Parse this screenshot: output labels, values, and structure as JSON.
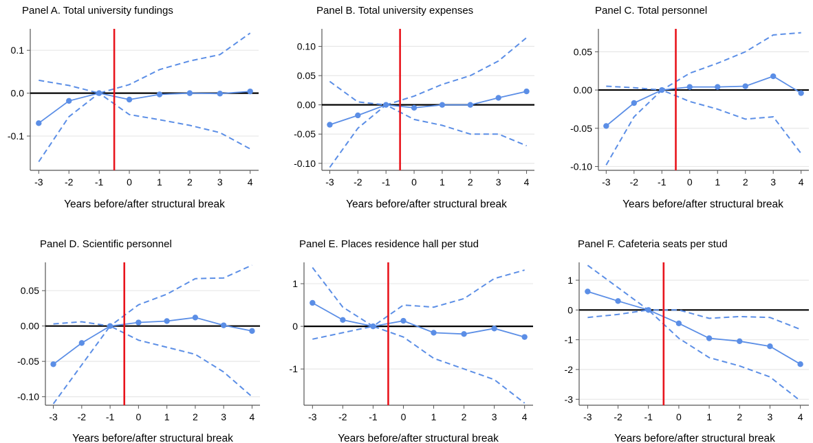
{
  "colors": {
    "series": "#5b8ee6",
    "break_line": "#e8141c",
    "zero_line": "#000000",
    "grid": "#e7e7e7",
    "axis": "#555555"
  },
  "chart_data": [
    {
      "type": "line",
      "title": "Panel A. Total university fundings",
      "xlabel": "Years before/after structural break",
      "ylabel": "",
      "x": [
        -3,
        -2,
        -1,
        0,
        1,
        2,
        3,
        4
      ],
      "xtick_labels": [
        "-3",
        "-2",
        "-1",
        "0",
        "1",
        "2",
        "3",
        "4"
      ],
      "ylim": [
        -0.18,
        0.15
      ],
      "yticks": [
        -0.1,
        0,
        0.1
      ],
      "ytick_labels": [
        "-0.1",
        "0.0",
        "0.1"
      ],
      "break_x": -0.5,
      "grid": true,
      "series": [
        {
          "role": "estimate",
          "style": "solid-markers",
          "values": [
            -0.07,
            -0.018,
            0.0,
            -0.015,
            -0.003,
            0.0,
            -0.001,
            0.004
          ]
        },
        {
          "role": "upper",
          "style": "dashed",
          "values": [
            0.03,
            0.018,
            0.0,
            0.02,
            0.055,
            0.075,
            0.09,
            0.14
          ]
        },
        {
          "role": "lower",
          "style": "dashed",
          "values": [
            -0.16,
            -0.055,
            0.0,
            -0.05,
            -0.062,
            -0.075,
            -0.092,
            -0.13
          ]
        }
      ]
    },
    {
      "type": "line",
      "title": "Panel B. Total university expenses",
      "xlabel": "Years before/after structural break",
      "ylabel": "",
      "x": [
        -3,
        -2,
        -1,
        0,
        1,
        2,
        3,
        4
      ],
      "xtick_labels": [
        "-3",
        "-2",
        "-1",
        "0",
        "1",
        "2",
        "3",
        "4"
      ],
      "ylim": [
        -0.112,
        0.13
      ],
      "yticks": [
        -0.1,
        -0.05,
        0,
        0.05,
        0.1
      ],
      "ytick_labels": [
        "-0.10",
        "-0.05",
        "0.00",
        "0.05",
        "0.10"
      ],
      "break_x": -0.5,
      "grid": true,
      "series": [
        {
          "role": "estimate",
          "style": "solid-markers",
          "values": [
            -0.034,
            -0.018,
            0.0,
            -0.005,
            0.0,
            0.0,
            0.012,
            0.023
          ]
        },
        {
          "role": "upper",
          "style": "dashed",
          "values": [
            0.04,
            0.005,
            0.0,
            0.015,
            0.035,
            0.05,
            0.075,
            0.115
          ]
        },
        {
          "role": "lower",
          "style": "dashed",
          "values": [
            -0.107,
            -0.04,
            0.0,
            -0.025,
            -0.035,
            -0.05,
            -0.05,
            -0.07
          ]
        }
      ]
    },
    {
      "type": "line",
      "title": "Panel C. Total personnel",
      "xlabel": "Years before/after structural break",
      "ylabel": "",
      "x": [
        -3,
        -2,
        -1,
        0,
        1,
        2,
        3,
        4
      ],
      "xtick_labels": [
        "-3",
        "-2",
        "-1",
        "0",
        "1",
        "2",
        "3",
        "4"
      ],
      "ylim": [
        -0.105,
        0.08
      ],
      "yticks": [
        -0.1,
        -0.05,
        0,
        0.05
      ],
      "ytick_labels": [
        "-0.10",
        "-0.05",
        "0.00",
        "0.05"
      ],
      "break_x": -0.5,
      "grid": true,
      "series": [
        {
          "role": "estimate",
          "style": "solid-markers",
          "values": [
            -0.047,
            -0.017,
            0.0,
            0.004,
            0.004,
            0.005,
            0.018,
            -0.004
          ]
        },
        {
          "role": "upper",
          "style": "dashed",
          "values": [
            0.005,
            0.003,
            0.0,
            0.022,
            0.035,
            0.05,
            0.072,
            0.075
          ]
        },
        {
          "role": "lower",
          "style": "dashed",
          "values": [
            -0.098,
            -0.035,
            0.0,
            -0.015,
            -0.025,
            -0.038,
            -0.035,
            -0.083
          ]
        }
      ]
    },
    {
      "type": "line",
      "title": "Panel D. Scientific personnel",
      "xlabel": "Years before/after structural break",
      "ylabel": "",
      "x": [
        -3,
        -2,
        -1,
        0,
        1,
        2,
        3,
        4
      ],
      "xtick_labels": [
        "-3",
        "-2",
        "-1",
        "0",
        "1",
        "2",
        "3",
        "4"
      ],
      "ylim": [
        -0.112,
        0.09
      ],
      "yticks": [
        -0.1,
        -0.05,
        0,
        0.05
      ],
      "ytick_labels": [
        "-0.10",
        "-0.05",
        "0.00",
        "0.05"
      ],
      "break_x": -0.5,
      "grid": true,
      "series": [
        {
          "role": "estimate",
          "style": "solid-markers",
          "values": [
            -0.054,
            -0.024,
            0.0,
            0.005,
            0.007,
            0.012,
            0.001,
            -0.007
          ]
        },
        {
          "role": "upper",
          "style": "dashed",
          "values": [
            0.003,
            0.006,
            0.0,
            0.03,
            0.045,
            0.067,
            0.068,
            0.086
          ]
        },
        {
          "role": "lower",
          "style": "dashed",
          "values": [
            -0.11,
            -0.055,
            0.0,
            -0.02,
            -0.03,
            -0.04,
            -0.065,
            -0.1
          ]
        }
      ]
    },
    {
      "type": "line",
      "title": "Panel E. Places residence hall per stud",
      "xlabel": "Years before/after structural break",
      "ylabel": "",
      "x": [
        -3,
        -2,
        -1,
        0,
        1,
        2,
        3,
        4
      ],
      "xtick_labels": [
        "-3",
        "-2",
        "-1",
        "0",
        "1",
        "2",
        "3",
        "4"
      ],
      "ylim": [
        -1.85,
        1.5
      ],
      "yticks": [
        -1,
        0,
        1
      ],
      "ytick_labels": [
        "-1",
        "0",
        "1"
      ],
      "break_x": -0.5,
      "grid": true,
      "series": [
        {
          "role": "estimate",
          "style": "solid-markers",
          "values": [
            0.55,
            0.15,
            0.0,
            0.13,
            -0.15,
            -0.18,
            -0.05,
            -0.25
          ]
        },
        {
          "role": "upper",
          "style": "dashed",
          "values": [
            1.38,
            0.45,
            0.0,
            0.5,
            0.45,
            0.65,
            1.12,
            1.32
          ]
        },
        {
          "role": "lower",
          "style": "dashed",
          "values": [
            -0.3,
            -0.15,
            0.0,
            -0.25,
            -0.75,
            -1.0,
            -1.25,
            -1.8
          ]
        }
      ]
    },
    {
      "type": "line",
      "title": "Panel F. Cafeteria seats per stud",
      "xlabel": "Years before/after structural break",
      "ylabel": "",
      "x": [
        -3,
        -2,
        -1,
        0,
        1,
        2,
        3,
        4
      ],
      "xtick_labels": [
        "-3",
        "-2",
        "-1",
        "0",
        "1",
        "2",
        "3",
        "4"
      ],
      "ylim": [
        -3.2,
        1.6
      ],
      "yticks": [
        -3,
        -2,
        -1,
        0,
        1
      ],
      "ytick_labels": [
        "-3",
        "-2",
        "-1",
        "0",
        "1"
      ],
      "break_x": -0.5,
      "grid": true,
      "series": [
        {
          "role": "estimate",
          "style": "solid-markers",
          "values": [
            0.62,
            0.3,
            0.0,
            -0.45,
            -0.95,
            -1.05,
            -1.22,
            -1.82
          ]
        },
        {
          "role": "upper",
          "style": "dashed",
          "values": [
            1.5,
            0.75,
            0.0,
            0.0,
            -0.28,
            -0.22,
            -0.25,
            -0.65
          ]
        },
        {
          "role": "lower",
          "style": "dashed",
          "values": [
            -0.25,
            -0.15,
            0.0,
            -0.95,
            -1.6,
            -1.88,
            -2.25,
            -3.05
          ]
        }
      ]
    }
  ]
}
